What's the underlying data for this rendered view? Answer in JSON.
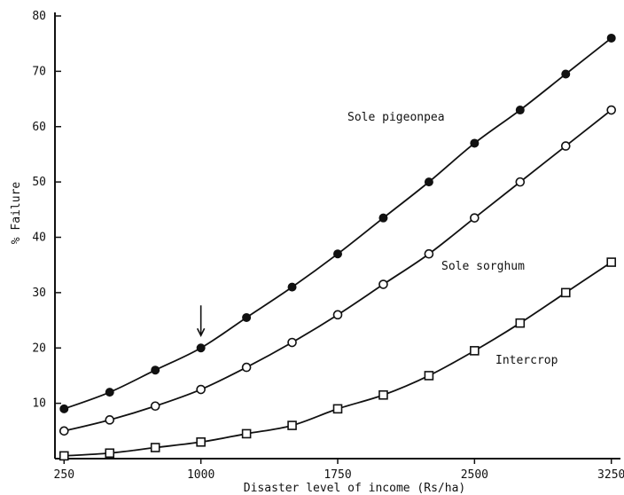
{
  "chart_data": {
    "type": "line",
    "xlabel": "Disaster level of income (Rs/ha)",
    "ylabel": "% Failure",
    "xlim": [
      200,
      3300
    ],
    "ylim": [
      0,
      80
    ],
    "x_ticks": [
      {
        "value": 250,
        "label": "250"
      },
      {
        "value": 1000,
        "label": "1000"
      },
      {
        "value": 1750,
        "label": "1750"
      },
      {
        "value": 2500,
        "label": "2500"
      },
      {
        "value": 3250,
        "label": "3250"
      }
    ],
    "y_ticks": [
      {
        "value": 10,
        "label": "10"
      },
      {
        "value": 20,
        "label": "20"
      },
      {
        "value": 30,
        "label": "30"
      },
      {
        "value": 40,
        "label": "40"
      },
      {
        "value": 50,
        "label": "50"
      },
      {
        "value": 60,
        "label": "60"
      },
      {
        "value": 70,
        "label": "70"
      },
      {
        "value": 80,
        "label": "80"
      }
    ],
    "x": [
      250,
      500,
      750,
      1000,
      1250,
      1500,
      1750,
      2000,
      2250,
      2500,
      2750,
      3000,
      3250
    ],
    "series": [
      {
        "name": "Sole pigeonpea",
        "marker": "filled-circle",
        "values": [
          9,
          12,
          16,
          20,
          25.5,
          31,
          37,
          43.5,
          50,
          57,
          63,
          69.5,
          76
        ]
      },
      {
        "name": "Sole sorghum",
        "marker": "open-circle",
        "values": [
          5,
          7,
          9.5,
          12.5,
          16.5,
          21,
          26,
          31.5,
          37,
          43.5,
          50,
          56.5,
          63
        ]
      },
      {
        "name": "Intercrop",
        "marker": "open-square",
        "values": [
          0.5,
          1,
          2,
          3,
          4.5,
          6,
          9,
          11.5,
          15,
          19.5,
          24.5,
          30,
          35.5
        ]
      }
    ],
    "annotation": {
      "type": "arrow",
      "x": 1000,
      "pointing": "down"
    },
    "grid": false,
    "legend": "inline-labels"
  }
}
